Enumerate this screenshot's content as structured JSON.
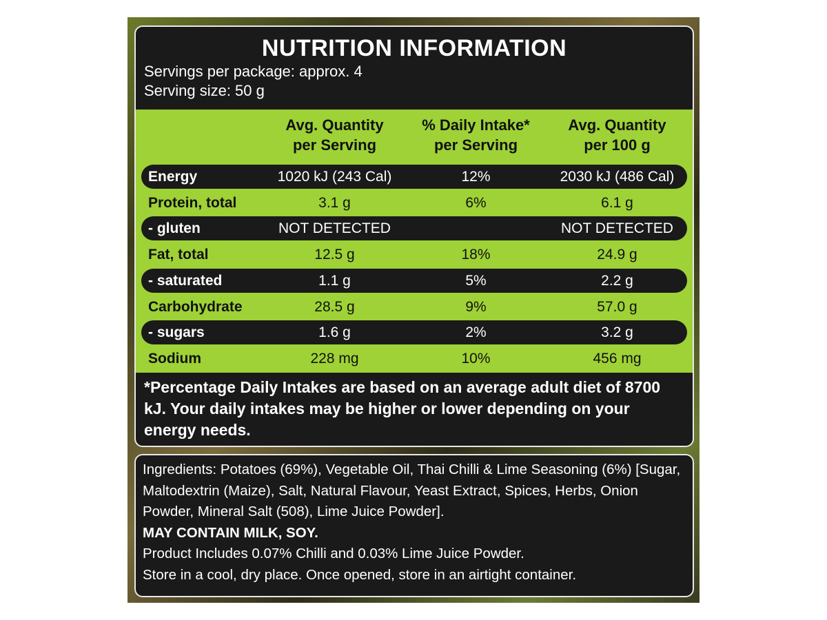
{
  "header": {
    "title": "NUTRITION INFORMATION",
    "servings_per_package": "Servings per package: approx. 4",
    "serving_size": "Serving size: 50 g"
  },
  "table": {
    "headers": [
      [
        "Avg. Quantity",
        "per Serving"
      ],
      [
        "% Daily Intake*",
        "per Serving"
      ],
      [
        "Avg. Quantity",
        "per 100 g"
      ]
    ],
    "rows": [
      [
        "Energy",
        "1020 kJ (243 Cal)",
        "12%",
        "2030 kJ (486 Cal)"
      ],
      [
        "Protein, total",
        "3.1 g",
        "6%",
        "6.1 g"
      ],
      [
        "- gluten",
        "NOT DETECTED",
        null,
        "NOT DETECTED"
      ],
      [
        "Fat, total",
        "12.5 g",
        "18%",
        "24.9 g"
      ],
      [
        "- saturated",
        "1.1 g",
        "5%",
        "2.2 g"
      ],
      [
        "Carbohydrate",
        "28.5 g",
        "9%",
        "57.0 g"
      ],
      [
        "- sugars",
        "1.6 g",
        "2%",
        "3.2 g"
      ],
      [
        "Sodium",
        "228 mg",
        "10%",
        "456 mg"
      ]
    ]
  },
  "footnote": "*Percentage Daily Intakes are based on an average adult diet of 8700 kJ. Your daily intakes may be higher or lower depending on your energy needs.",
  "ingredients": {
    "text": "Ingredients: Potatoes (69%), Vegetable Oil, Thai Chilli & Lime Seasoning (6%) [Sugar, Maltodextrin (Maize), Salt, Natural Flavour, Yeast Extract, Spices, Herbs, Onion Powder, Mineral Salt (508), Lime Juice Powder].",
    "allergens": "MAY CONTAIN MILK, SOY.",
    "includes": "Product Includes 0.07% Chilli and 0.03% Lime Juice Powder.",
    "storage": "Store in a cool, dry place. Once opened, store in an airtight container."
  }
}
